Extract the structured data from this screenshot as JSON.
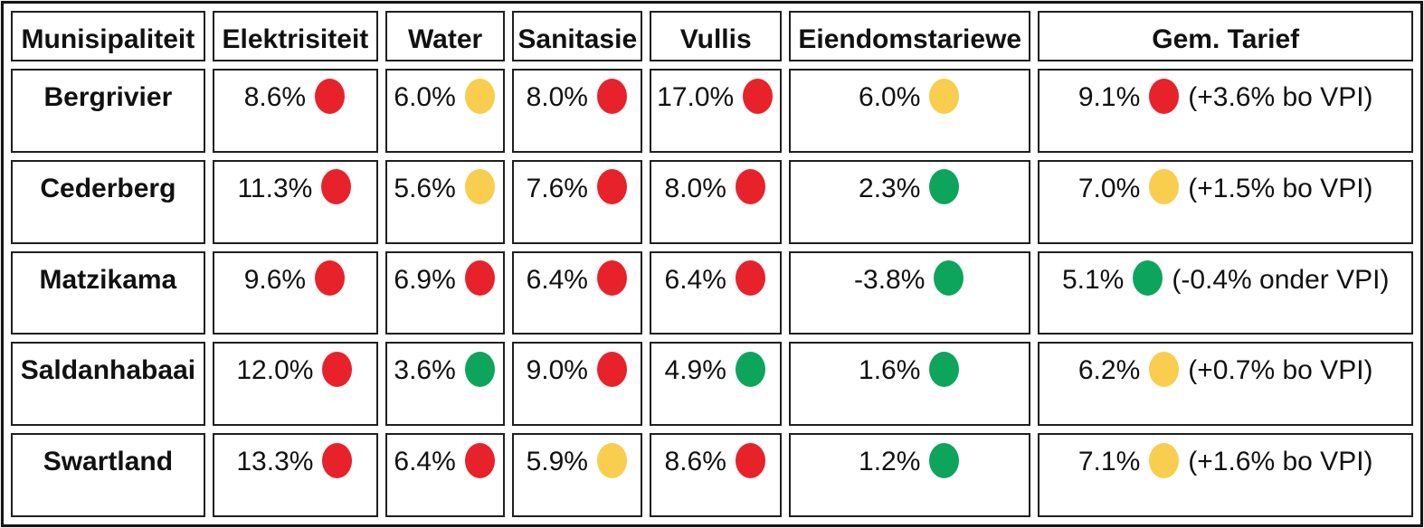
{
  "table": {
    "columns": [
      {
        "key": "municipality",
        "label": "Munisipaliteit"
      },
      {
        "key": "electricity",
        "label": "Elektrisiteit"
      },
      {
        "key": "water",
        "label": "Water"
      },
      {
        "key": "sanitation",
        "label": "Sanitasie"
      },
      {
        "key": "refuse",
        "label": "Vullis"
      },
      {
        "key": "property",
        "label": "Eiendomstariewe"
      },
      {
        "key": "avg",
        "label": "Gem. Tarief"
      }
    ],
    "rows": [
      {
        "municipality": "Bergrivier",
        "electricity": {
          "value": "8.6%",
          "status": "red"
        },
        "water": {
          "value": "6.0%",
          "status": "yellow"
        },
        "sanitation": {
          "value": "8.0%",
          "status": "red"
        },
        "refuse": {
          "value": "17.0%",
          "status": "red"
        },
        "property": {
          "value": "6.0%",
          "status": "yellow"
        },
        "avg": {
          "value": "9.1%",
          "status": "red",
          "note": "(+3.6% bo VPI)"
        }
      },
      {
        "municipality": "Cederberg",
        "electricity": {
          "value": "11.3%",
          "status": "red"
        },
        "water": {
          "value": "5.6%",
          "status": "yellow"
        },
        "sanitation": {
          "value": "7.6%",
          "status": "red"
        },
        "refuse": {
          "value": "8.0%",
          "status": "red"
        },
        "property": {
          "value": "2.3%",
          "status": "green"
        },
        "avg": {
          "value": "7.0%",
          "status": "yellow",
          "note": "(+1.5% bo VPI)"
        }
      },
      {
        "municipality": "Matzikama",
        "electricity": {
          "value": "9.6%",
          "status": "red"
        },
        "water": {
          "value": "6.9%",
          "status": "red"
        },
        "sanitation": {
          "value": "6.4%",
          "status": "red"
        },
        "refuse": {
          "value": "6.4%",
          "status": "red"
        },
        "property": {
          "value": "-3.8%",
          "status": "green"
        },
        "avg": {
          "value": "5.1%",
          "status": "green",
          "note": "(-0.4% onder VPI)"
        }
      },
      {
        "municipality": "Saldanhabaai",
        "electricity": {
          "value": "12.0%",
          "status": "red"
        },
        "water": {
          "value": "3.6%",
          "status": "green"
        },
        "sanitation": {
          "value": "9.0%",
          "status": "red"
        },
        "refuse": {
          "value": "4.9%",
          "status": "green"
        },
        "property": {
          "value": "1.6%",
          "status": "green"
        },
        "avg": {
          "value": "6.2%",
          "status": "yellow",
          "note": "(+0.7% bo VPI)"
        }
      },
      {
        "municipality": "Swartland",
        "electricity": {
          "value": "13.3%",
          "status": "red"
        },
        "water": {
          "value": "6.4%",
          "status": "red"
        },
        "sanitation": {
          "value": "5.9%",
          "status": "yellow"
        },
        "refuse": {
          "value": "8.6%",
          "status": "red"
        },
        "property": {
          "value": "1.2%",
          "status": "green"
        },
        "avg": {
          "value": "7.1%",
          "status": "yellow",
          "note": "(+1.6% bo VPI)"
        }
      }
    ]
  },
  "status_colors": {
    "red": "#E8222A",
    "yellow": "#F9CD4D",
    "green": "#0DA55B"
  }
}
